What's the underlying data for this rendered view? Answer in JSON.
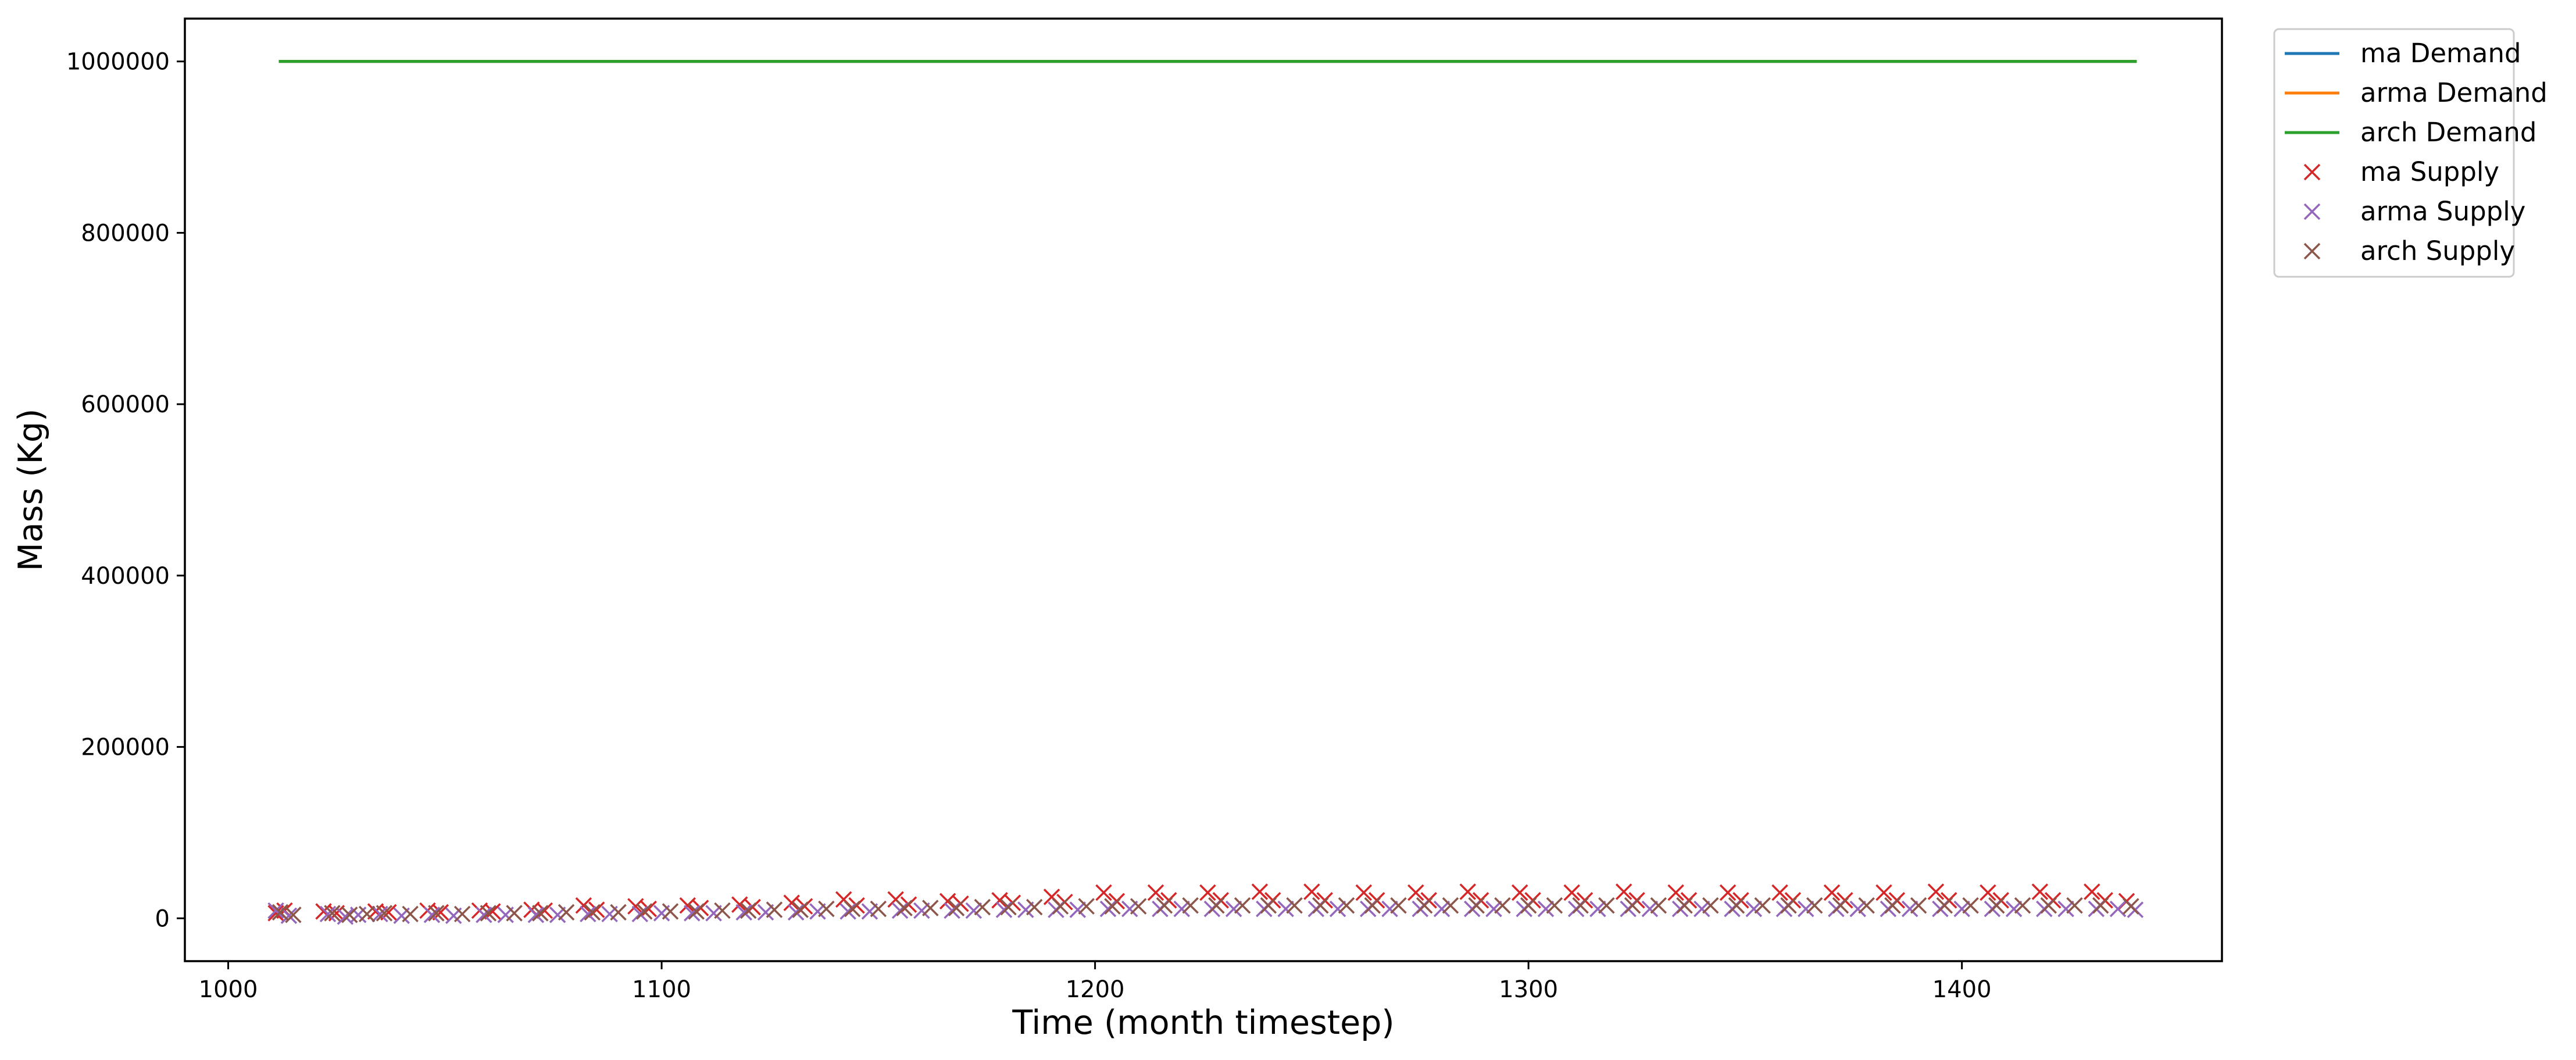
{
  "chart_data": {
    "type": "line",
    "title": "",
    "xlabel": "Time (month timestep)",
    "ylabel": "Mass (Kg)",
    "xlim": [
      990,
      1460
    ],
    "ylim": [
      -50000,
      1050000
    ],
    "xticks": [
      1000,
      1100,
      1200,
      1300,
      1400
    ],
    "yticks": [
      0,
      200000,
      400000,
      600000,
      800000,
      1000000
    ],
    "grid": false,
    "legend_placement": "outside top-right",
    "series": [
      {
        "name": "ma Demand",
        "kind": "line",
        "color": "#1f77b4",
        "x": [
          1012,
          1440
        ],
        "y": [
          1000000,
          1000000
        ]
      },
      {
        "name": "arma Demand",
        "kind": "line",
        "color": "#ff7f0e",
        "x": [
          1012,
          1440
        ],
        "y": [
          1000000,
          1000000
        ]
      },
      {
        "name": "arch Demand",
        "kind": "line",
        "color": "#2ca02c",
        "x": [
          1012,
          1440
        ],
        "y": [
          1000000,
          1000000
        ]
      },
      {
        "name": "ma Supply",
        "kind": "marker",
        "marker": "x",
        "color": "#d62728",
        "x": [
          1011,
          1013,
          1022,
          1025,
          1034,
          1037,
          1046,
          1049,
          1058,
          1061,
          1070,
          1073,
          1082,
          1085,
          1094,
          1097,
          1106,
          1109,
          1118,
          1121,
          1130,
          1133,
          1142,
          1145,
          1154,
          1157,
          1166,
          1169,
          1178,
          1181,
          1190,
          1193,
          1202,
          1205,
          1214,
          1217,
          1226,
          1229,
          1238,
          1241,
          1250,
          1253,
          1262,
          1265,
          1274,
          1277,
          1286,
          1289,
          1298,
          1301,
          1310,
          1313,
          1322,
          1325,
          1334,
          1337,
          1346,
          1349,
          1358,
          1361,
          1370,
          1373,
          1382,
          1385,
          1394,
          1397,
          1406,
          1409,
          1418,
          1421,
          1430,
          1433,
          1438
        ],
        "y": [
          6000,
          9000,
          8000,
          6000,
          8000,
          7000,
          9000,
          7000,
          9000,
          8000,
          10000,
          9000,
          15000,
          10000,
          14000,
          11000,
          15000,
          12000,
          16000,
          13000,
          18000,
          14000,
          22000,
          15000,
          22000,
          16000,
          20000,
          17000,
          21000,
          18000,
          25000,
          19000,
          30000,
          20000,
          30000,
          21000,
          30000,
          21000,
          31000,
          21000,
          31000,
          21000,
          30000,
          21000,
          30000,
          21000,
          31000,
          21000,
          30000,
          21000,
          30000,
          21000,
          31000,
          21000,
          30000,
          21000,
          30000,
          21000,
          30000,
          21000,
          30000,
          21000,
          30000,
          21000,
          31000,
          21000,
          30000,
          21000,
          31000,
          21000,
          31000,
          21000,
          20000
        ]
      },
      {
        "name": "arma Supply",
        "kind": "marker",
        "marker": "x",
        "color": "#9467bd",
        "x": [
          1011,
          1014,
          1023,
          1027,
          1030,
          1035,
          1040,
          1047,
          1052,
          1059,
          1064,
          1071,
          1076,
          1083,
          1088,
          1095,
          1100,
          1107,
          1112,
          1119,
          1124,
          1131,
          1136,
          1143,
          1148,
          1155,
          1160,
          1167,
          1172,
          1179,
          1184,
          1191,
          1196,
          1203,
          1208,
          1215,
          1220,
          1227,
          1232,
          1239,
          1244,
          1251,
          1256,
          1263,
          1268,
          1275,
          1280,
          1287,
          1292,
          1299,
          1304,
          1311,
          1316,
          1323,
          1328,
          1335,
          1340,
          1347,
          1352,
          1359,
          1364,
          1371,
          1376,
          1383,
          1388,
          1395,
          1400,
          1407,
          1412,
          1419,
          1424,
          1431,
          1436,
          1440
        ],
        "y": [
          9000,
          3000,
          5000,
          2000,
          4000,
          5000,
          3000,
          4000,
          3000,
          4000,
          4000,
          4000,
          4000,
          5000,
          5000,
          5000,
          6000,
          6000,
          6000,
          7000,
          7000,
          7000,
          8000,
          8000,
          8000,
          9000,
          9000,
          9000,
          9000,
          10000,
          10000,
          10000,
          10000,
          11000,
          11000,
          11000,
          11000,
          11000,
          11000,
          11000,
          11000,
          11000,
          11000,
          11000,
          11000,
          11000,
          11000,
          11000,
          11000,
          11000,
          11000,
          11000,
          11000,
          11000,
          11000,
          11000,
          11000,
          11000,
          11000,
          11000,
          11000,
          11000,
          11000,
          11000,
          11000,
          11000,
          11000,
          11000,
          11000,
          11000,
          11000,
          11000,
          11000,
          10000
        ]
      },
      {
        "name": "arch Supply",
        "kind": "marker",
        "marker": "x",
        "color": "#8c564b",
        "x": [
          1012,
          1015,
          1024,
          1028,
          1032,
          1036,
          1042,
          1048,
          1054,
          1060,
          1066,
          1072,
          1078,
          1084,
          1090,
          1096,
          1102,
          1108,
          1114,
          1120,
          1126,
          1132,
          1138,
          1144,
          1150,
          1156,
          1162,
          1168,
          1174,
          1180,
          1186,
          1192,
          1198,
          1204,
          1210,
          1216,
          1222,
          1228,
          1234,
          1240,
          1246,
          1252,
          1258,
          1264,
          1270,
          1276,
          1282,
          1288,
          1294,
          1300,
          1306,
          1312,
          1318,
          1324,
          1330,
          1336,
          1342,
          1348,
          1354,
          1360,
          1366,
          1372,
          1378,
          1384,
          1390,
          1396,
          1402,
          1408,
          1414,
          1420,
          1426,
          1432,
          1439
        ],
        "y": [
          7000,
          4000,
          6000,
          4000,
          5000,
          6000,
          5000,
          6000,
          5000,
          6000,
          6000,
          6000,
          7000,
          7000,
          7000,
          8000,
          8000,
          8000,
          9000,
          9000,
          10000,
          10000,
          11000,
          11000,
          11000,
          12000,
          12000,
          12000,
          13000,
          13000,
          13000,
          14000,
          14000,
          14000,
          14000,
          15000,
          15000,
          15000,
          15000,
          15000,
          15000,
          15000,
          15000,
          15000,
          15000,
          15000,
          15000,
          15000,
          15000,
          15000,
          15000,
          15000,
          15000,
          15000,
          15000,
          15000,
          15000,
          15000,
          15000,
          15000,
          15000,
          15000,
          15000,
          15000,
          15000,
          15000,
          15000,
          15000,
          15000,
          15000,
          15000,
          15000,
          14000
        ]
      }
    ]
  }
}
